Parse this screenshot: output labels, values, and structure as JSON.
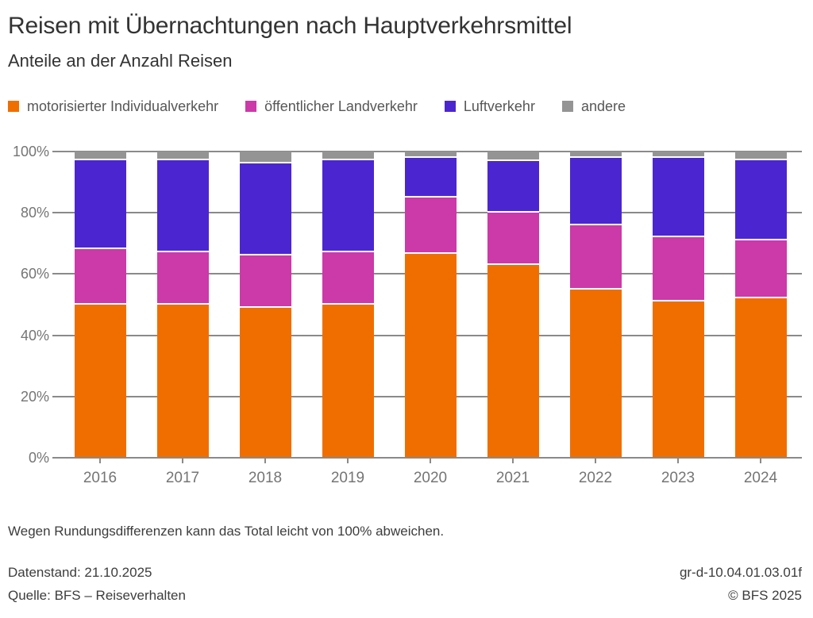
{
  "header": {
    "title": "Reisen mit Übernachtungen nach Hauptverkehrsmittel",
    "subtitle": "Anteile an der Anzahl Reisen"
  },
  "chart_data": {
    "type": "bar",
    "variant": "stacked-percent",
    "categories": [
      "2016",
      "2017",
      "2018",
      "2019",
      "2020",
      "2021",
      "2022",
      "2023",
      "2024"
    ],
    "series": [
      {
        "name": "motorisierter Individualverkehr",
        "color": "#f06e00",
        "values": [
          50,
          50,
          49,
          50,
          66,
          63,
          55,
          51,
          52
        ]
      },
      {
        "name": "öffentlicher Landverkehr",
        "color": "#cc39a8",
        "values": [
          18,
          17,
          17,
          17,
          18,
          17,
          21,
          21,
          19
        ]
      },
      {
        "name": "Luftverkehr",
        "color": "#4b26d0",
        "values": [
          29,
          30,
          30,
          30,
          13,
          17,
          22,
          26,
          26
        ]
      },
      {
        "name": "andere",
        "color": "#949494",
        "values": [
          3,
          3,
          4,
          3,
          2,
          3,
          2,
          2,
          3
        ]
      }
    ],
    "unit": "%",
    "ylim": [
      0,
      100
    ],
    "y_tick_labels": [
      "0%",
      "20%",
      "40%",
      "60%",
      "80%",
      "100%"
    ],
    "grid": true,
    "legend_position": "top"
  },
  "footnote": "Wegen Rundungsdifferenzen kann das Total leicht von 100% abweichen.",
  "footer": {
    "left_line1": "Datenstand: 21.10.2025",
    "left_line2": "Quelle: BFS – Reiseverhalten",
    "right_line1": "gr-d-10.04.01.03.01f",
    "right_line2": "© BFS 2025"
  }
}
